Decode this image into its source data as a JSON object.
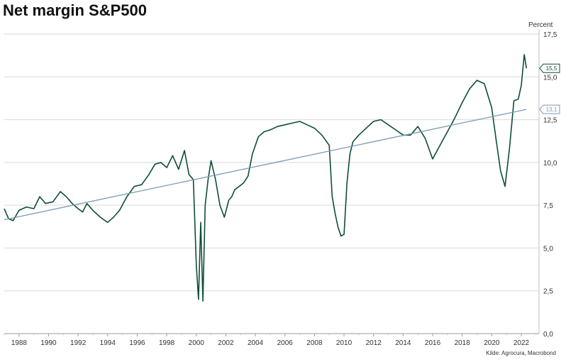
{
  "chart_data": {
    "type": "line",
    "title": "Net margin S&P500",
    "ylabel": "Percent",
    "source": "Kilde: Agrocura, Macrobond",
    "ylim": [
      0,
      17.5
    ],
    "xlim": [
      1987.0,
      2023.2
    ],
    "yticks": [
      0,
      2.5,
      5,
      7.5,
      10,
      12.5,
      15,
      17.5
    ],
    "ytick_labels": [
      "0,0",
      "2,5",
      "5,0",
      "7,5",
      "10,0",
      "12,5",
      "15,0",
      "17,5"
    ],
    "xticks": [
      1988,
      1990,
      1992,
      1994,
      1996,
      1998,
      2000,
      2002,
      2004,
      2006,
      2008,
      2010,
      2012,
      2014,
      2016,
      2018,
      2020,
      2022
    ],
    "grid": true,
    "series": [
      {
        "name": "",
        "color": "#0e4d3a",
        "x": [
          1987.0,
          1987.3,
          1987.6,
          1988.0,
          1988.5,
          1989.0,
          1989.4,
          1989.8,
          1990.3,
          1990.8,
          1991.2,
          1991.6,
          1992.0,
          1992.3,
          1992.6,
          1993.0,
          1993.5,
          1994.0,
          1994.4,
          1994.8,
          1995.3,
          1995.8,
          1996.3,
          1996.8,
          1997.2,
          1997.6,
          1998.0,
          1998.4,
          1998.8,
          1999.2,
          1999.5,
          1999.8,
          2000.0,
          2000.15,
          2000.3,
          2000.45,
          2000.6,
          2000.8,
          2001.0,
          2001.3,
          2001.6,
          2001.9,
          2002.2,
          2002.4,
          2002.6,
          2002.9,
          2003.2,
          2003.5,
          2003.8,
          2004.2,
          2004.6,
          2005.0,
          2005.5,
          2006.0,
          2006.5,
          2007.0,
          2007.5,
          2008.0,
          2008.5,
          2009.0,
          2009.2,
          2009.4,
          2009.6,
          2009.8,
          2010.0,
          2010.2,
          2010.4,
          2010.6,
          2011.0,
          2011.5,
          2012.0,
          2012.5,
          2013.0,
          2013.5,
          2014.0,
          2014.5,
          2015.0,
          2015.5,
          2016.0,
          2016.5,
          2017.0,
          2017.5,
          2018.0,
          2018.5,
          2019.0,
          2019.5,
          2020.0,
          2020.3,
          2020.6,
          2020.9,
          2021.2,
          2021.5,
          2021.8,
          2022.0,
          2022.2,
          2022.35
        ],
        "y": [
          7.3,
          6.7,
          6.6,
          7.2,
          7.4,
          7.3,
          8.0,
          7.6,
          7.7,
          8.3,
          8.0,
          7.6,
          7.3,
          7.1,
          7.6,
          7.2,
          6.8,
          6.5,
          6.8,
          7.2,
          8.0,
          8.6,
          8.7,
          9.3,
          9.9,
          10.0,
          9.7,
          10.4,
          9.6,
          10.7,
          9.3,
          9.0,
          4.0,
          2.0,
          6.5,
          1.9,
          7.5,
          9.0,
          10.1,
          9.0,
          7.5,
          6.8,
          7.8,
          8.0,
          8.4,
          8.6,
          8.8,
          9.2,
          10.5,
          11.5,
          11.8,
          11.9,
          12.1,
          12.2,
          12.3,
          12.4,
          12.2,
          12.0,
          11.6,
          11.0,
          8.0,
          7.0,
          6.2,
          5.7,
          5.8,
          8.8,
          10.5,
          11.2,
          11.6,
          12.0,
          12.4,
          12.5,
          12.2,
          11.9,
          11.6,
          11.6,
          12.1,
          11.4,
          10.2,
          11.0,
          11.8,
          12.6,
          13.5,
          14.3,
          14.8,
          14.6,
          13.2,
          11.3,
          9.5,
          8.6,
          10.8,
          13.6,
          13.7,
          14.5,
          16.3,
          15.5
        ]
      },
      {
        "name": "",
        "color": "#7b9bb3",
        "x": [
          1987.0,
          2022.35
        ],
        "y": [
          6.65,
          13.1
        ]
      }
    ],
    "annotations": [
      {
        "label": "15,5",
        "y": 15.5,
        "series": 0
      },
      {
        "label": "13,1",
        "y": 13.1,
        "series": 1
      }
    ]
  }
}
